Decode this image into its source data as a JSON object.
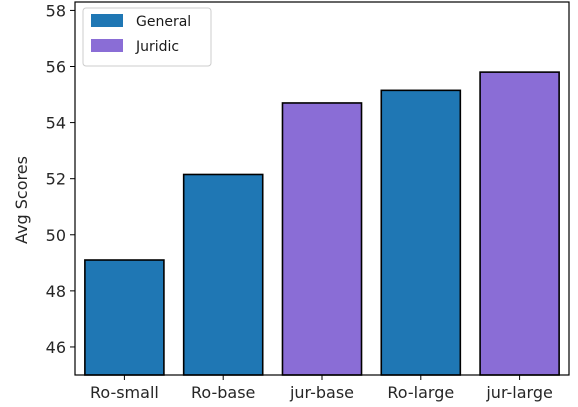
{
  "chart_data": {
    "type": "bar",
    "title": "",
    "xlabel": "",
    "ylabel": "Avg Scores",
    "ylim": [
      45,
      58.3
    ],
    "yticks": [
      46,
      48,
      50,
      52,
      54,
      56,
      58
    ],
    "grid": false,
    "legend_position": "top-left",
    "categories": [
      "Ro-small",
      "Ro-base",
      "jur-base",
      "Ro-large",
      "jur-large"
    ],
    "values": [
      49.1,
      52.15,
      54.7,
      55.15,
      55.8
    ],
    "groups": [
      "General",
      "General",
      "Juridic",
      "General",
      "Juridic"
    ],
    "legend": [
      {
        "name": "General",
        "color": "#1f77b4"
      },
      {
        "name": "Juridic",
        "color": "#8a6dd6"
      }
    ]
  }
}
